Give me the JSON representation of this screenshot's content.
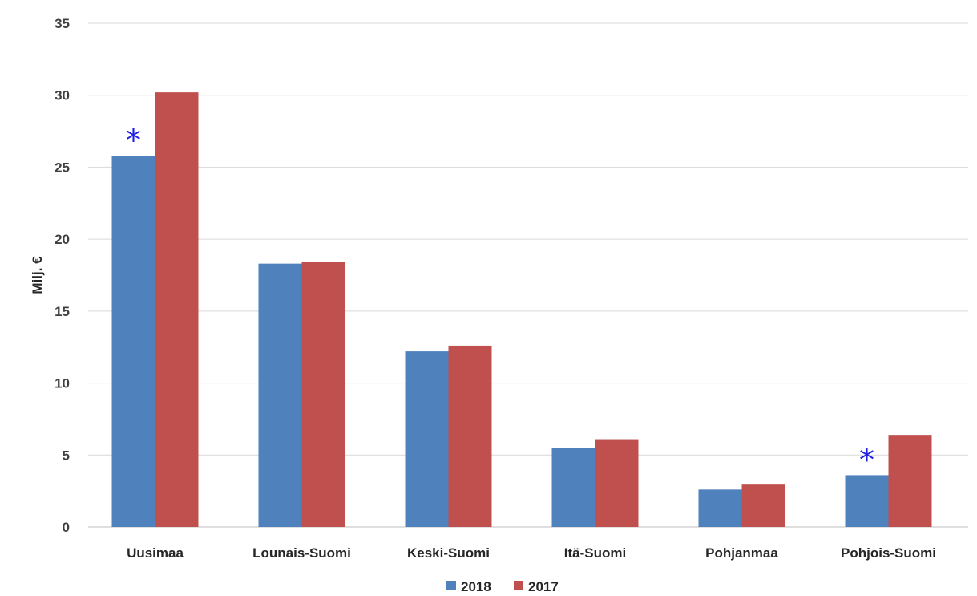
{
  "chart_data": {
    "type": "bar",
    "title": "",
    "xlabel": "",
    "ylabel": "Milj. €",
    "ylim": [
      0,
      35
    ],
    "yticks": [
      "0",
      "5",
      "10",
      "15",
      "20",
      "25",
      "30",
      "35"
    ],
    "grid": true,
    "legend_position": "bottom",
    "categories": [
      "Uusimaa",
      "Lounais-Suomi",
      "Keski-Suomi",
      "Itä-Suomi",
      "Pohjanmaa",
      "Pohjois-Suomi"
    ],
    "series": [
      {
        "name": "2018",
        "color": "#4f81bd",
        "values": [
          25.8,
          18.3,
          12.2,
          5.5,
          2.6,
          3.6
        ]
      },
      {
        "name": "2017",
        "color": "#c0504d",
        "values": [
          30.2,
          18.4,
          12.6,
          6.1,
          3.0,
          6.4
        ]
      }
    ],
    "annotations": [
      {
        "text": "*",
        "category": "Uusimaa",
        "series": "2018"
      },
      {
        "text": "*",
        "category": "Pohjois-Suomi",
        "series": "2018"
      }
    ]
  }
}
